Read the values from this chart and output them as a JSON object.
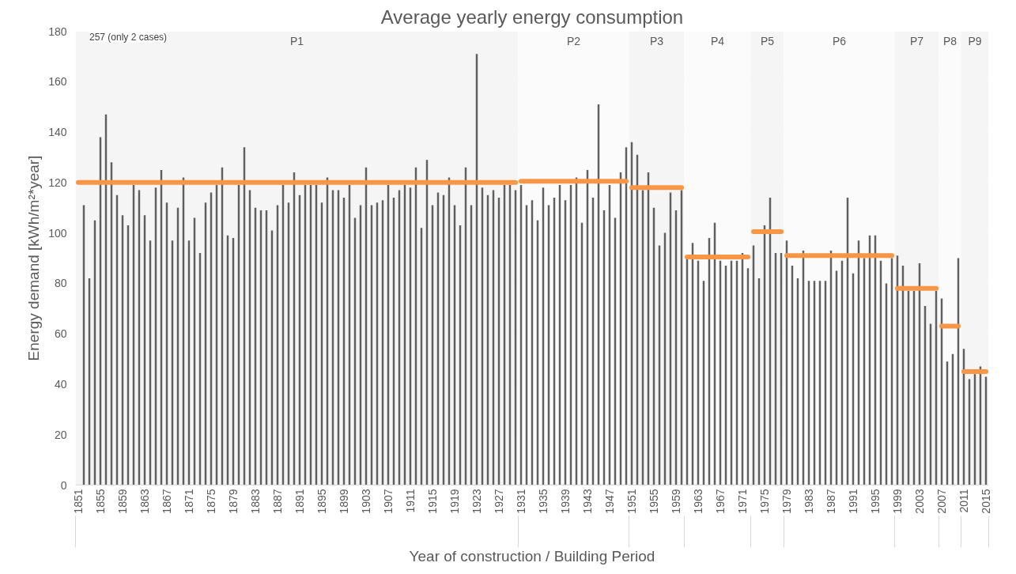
{
  "chart_data": {
    "type": "bar",
    "title": "Average yearly energy consumption",
    "xlabel": "Year of construction / Building Period",
    "ylabel": "Energy demand [kWh/m²*year]",
    "x": [
      1852,
      1853,
      1854,
      1855,
      1856,
      1857,
      1858,
      1859,
      1860,
      1861,
      1862,
      1863,
      1864,
      1865,
      1866,
      1867,
      1868,
      1869,
      1870,
      1871,
      1872,
      1873,
      1874,
      1875,
      1876,
      1877,
      1878,
      1879,
      1880,
      1881,
      1882,
      1883,
      1884,
      1885,
      1886,
      1887,
      1888,
      1889,
      1890,
      1891,
      1892,
      1893,
      1894,
      1895,
      1896,
      1897,
      1898,
      1899,
      1900,
      1901,
      1902,
      1903,
      1904,
      1905,
      1906,
      1907,
      1908,
      1909,
      1910,
      1911,
      1912,
      1913,
      1914,
      1915,
      1916,
      1917,
      1918,
      1919,
      1920,
      1921,
      1922,
      1923,
      1924,
      1925,
      1926,
      1927,
      1928,
      1929,
      1930,
      1931,
      1932,
      1933,
      1934,
      1935,
      1936,
      1937,
      1938,
      1939,
      1940,
      1941,
      1942,
      1943,
      1944,
      1945,
      1946,
      1947,
      1948,
      1949,
      1950,
      1951,
      1952,
      1953,
      1954,
      1955,
      1956,
      1957,
      1958,
      1959,
      1960,
      1961,
      1962,
      1963,
      1964,
      1965,
      1966,
      1967,
      1968,
      1969,
      1970,
      1971,
      1972,
      1973,
      1974,
      1975,
      1976,
      1977,
      1978,
      1979,
      1980,
      1981,
      1982,
      1983,
      1984,
      1985,
      1986,
      1987,
      1988,
      1989,
      1990,
      1991,
      1992,
      1993,
      1994,
      1995,
      1996,
      1997,
      1998,
      1999,
      2000,
      2001,
      2002,
      2003,
      2004,
      2005,
      2006,
      2007,
      2008,
      2009,
      2010,
      2011,
      2012,
      2013,
      2014,
      2015
    ],
    "series": [
      {
        "color": "#5f5f5f",
        "values": [
          111,
          82,
          105,
          138,
          147,
          128,
          115,
          107,
          103,
          119,
          117,
          107,
          97,
          118,
          125,
          112,
          97,
          110,
          122,
          97,
          106,
          92,
          112,
          116,
          119,
          126,
          99,
          98,
          119,
          134,
          117,
          110,
          109,
          109,
          101,
          111,
          119,
          112,
          124,
          115,
          119,
          119,
          119,
          112,
          122,
          117,
          117,
          114,
          119,
          106,
          111,
          126,
          111,
          112,
          113,
          119,
          114,
          117,
          119,
          118,
          126,
          102,
          129,
          111,
          116,
          115,
          122,
          111,
          103,
          126,
          111,
          171,
          118,
          115,
          117,
          114,
          119,
          119,
          117,
          119,
          111,
          113,
          105,
          118,
          111,
          114,
          119,
          113,
          119,
          122,
          104,
          125,
          114,
          151,
          109,
          119,
          106,
          124,
          134,
          136,
          131,
          117,
          124,
          110,
          95,
          100,
          116,
          109,
          117,
          90,
          96,
          89,
          81,
          98,
          104,
          89,
          87,
          89,
          89,
          92,
          86,
          95,
          82,
          103,
          114,
          92,
          92,
          97,
          87,
          82,
          93,
          81,
          81,
          81,
          81,
          93,
          85,
          89,
          114,
          84,
          97,
          90,
          99,
          99,
          89,
          80,
          90,
          91,
          87,
          77,
          77,
          88,
          71,
          64,
          77,
          74,
          49,
          52,
          90,
          54,
          42,
          44,
          47,
          43
        ]
      },
      {
        "type": "line",
        "color": "#f79646",
        "x": [
          1851,
          1930
        ],
        "values": [
          120,
          120
        ]
      },
      {
        "type": "line",
        "color": "#f79646",
        "x": [
          1931,
          1950
        ],
        "values": [
          120.5,
          120.5
        ]
      },
      {
        "type": "line",
        "color": "#f79646",
        "x": [
          1951,
          1960
        ],
        "values": [
          118,
          118
        ]
      },
      {
        "type": "line",
        "color": "#f79646",
        "x": [
          1961,
          1972
        ],
        "values": [
          90.5,
          90.5
        ]
      },
      {
        "type": "line",
        "color": "#f79646",
        "x": [
          1973,
          1978
        ],
        "values": [
          100.5,
          100.5
        ]
      },
      {
        "type": "line",
        "color": "#f79646",
        "x": [
          1979,
          1998
        ],
        "values": [
          91,
          91
        ]
      },
      {
        "type": "line",
        "color": "#f79646",
        "x": [
          1999,
          2006
        ],
        "values": [
          78,
          78
        ]
      },
      {
        "type": "line",
        "color": "#f79646",
        "x": [
          2007,
          2010
        ],
        "values": [
          63,
          63
        ]
      },
      {
        "type": "line",
        "color": "#f79646",
        "x": [
          2011,
          2015
        ],
        "values": [
          45,
          45
        ]
      }
    ],
    "bands": [
      {
        "axis": "x",
        "from": 1850.5,
        "to": 1930.5,
        "label": "P1",
        "color": "#f5f5f5"
      },
      {
        "axis": "x",
        "from": 1930.5,
        "to": 1950.5,
        "label": "P2",
        "color": "#fbfbfb"
      },
      {
        "axis": "x",
        "from": 1950.5,
        "to": 1960.5,
        "label": "P3",
        "color": "#f5f5f5"
      },
      {
        "axis": "x",
        "from": 1960.5,
        "to": 1972.5,
        "label": "P4",
        "color": "#fbfbfb"
      },
      {
        "axis": "x",
        "from": 1972.5,
        "to": 1978.5,
        "label": "P5",
        "color": "#f5f5f5"
      },
      {
        "axis": "x",
        "from": 1978.5,
        "to": 1998.5,
        "label": "P6",
        "color": "#fbfbfb"
      },
      {
        "axis": "x",
        "from": 1998.5,
        "to": 2006.5,
        "label": "P7",
        "color": "#f5f5f5"
      },
      {
        "axis": "x",
        "from": 2006.5,
        "to": 2010.5,
        "label": "P8",
        "color": "#fbfbfb"
      },
      {
        "axis": "x",
        "from": 2010.5,
        "to": 2015.5,
        "label": "P9",
        "color": "#f5f5f5"
      }
    ],
    "annotations": [
      {
        "text": "257 (only 2 cases)",
        "x": 1851,
        "y": 180
      }
    ],
    "xlim": [
      1850.5,
      2015.5
    ],
    "xticks": [
      1851,
      1855,
      1859,
      1863,
      1867,
      1871,
      1875,
      1879,
      1883,
      1887,
      1891,
      1895,
      1899,
      1903,
      1907,
      1911,
      1915,
      1919,
      1923,
      1927,
      1931,
      1935,
      1939,
      1943,
      1947,
      1951,
      1955,
      1959,
      1963,
      1967,
      1971,
      1975,
      1979,
      1983,
      1987,
      1991,
      1995,
      1999,
      2003,
      2007,
      2011,
      2015
    ],
    "ylim": [
      0,
      180
    ],
    "yticks": [
      0,
      20,
      40,
      60,
      80,
      100,
      120,
      140,
      160,
      180
    ],
    "grid": "y"
  }
}
